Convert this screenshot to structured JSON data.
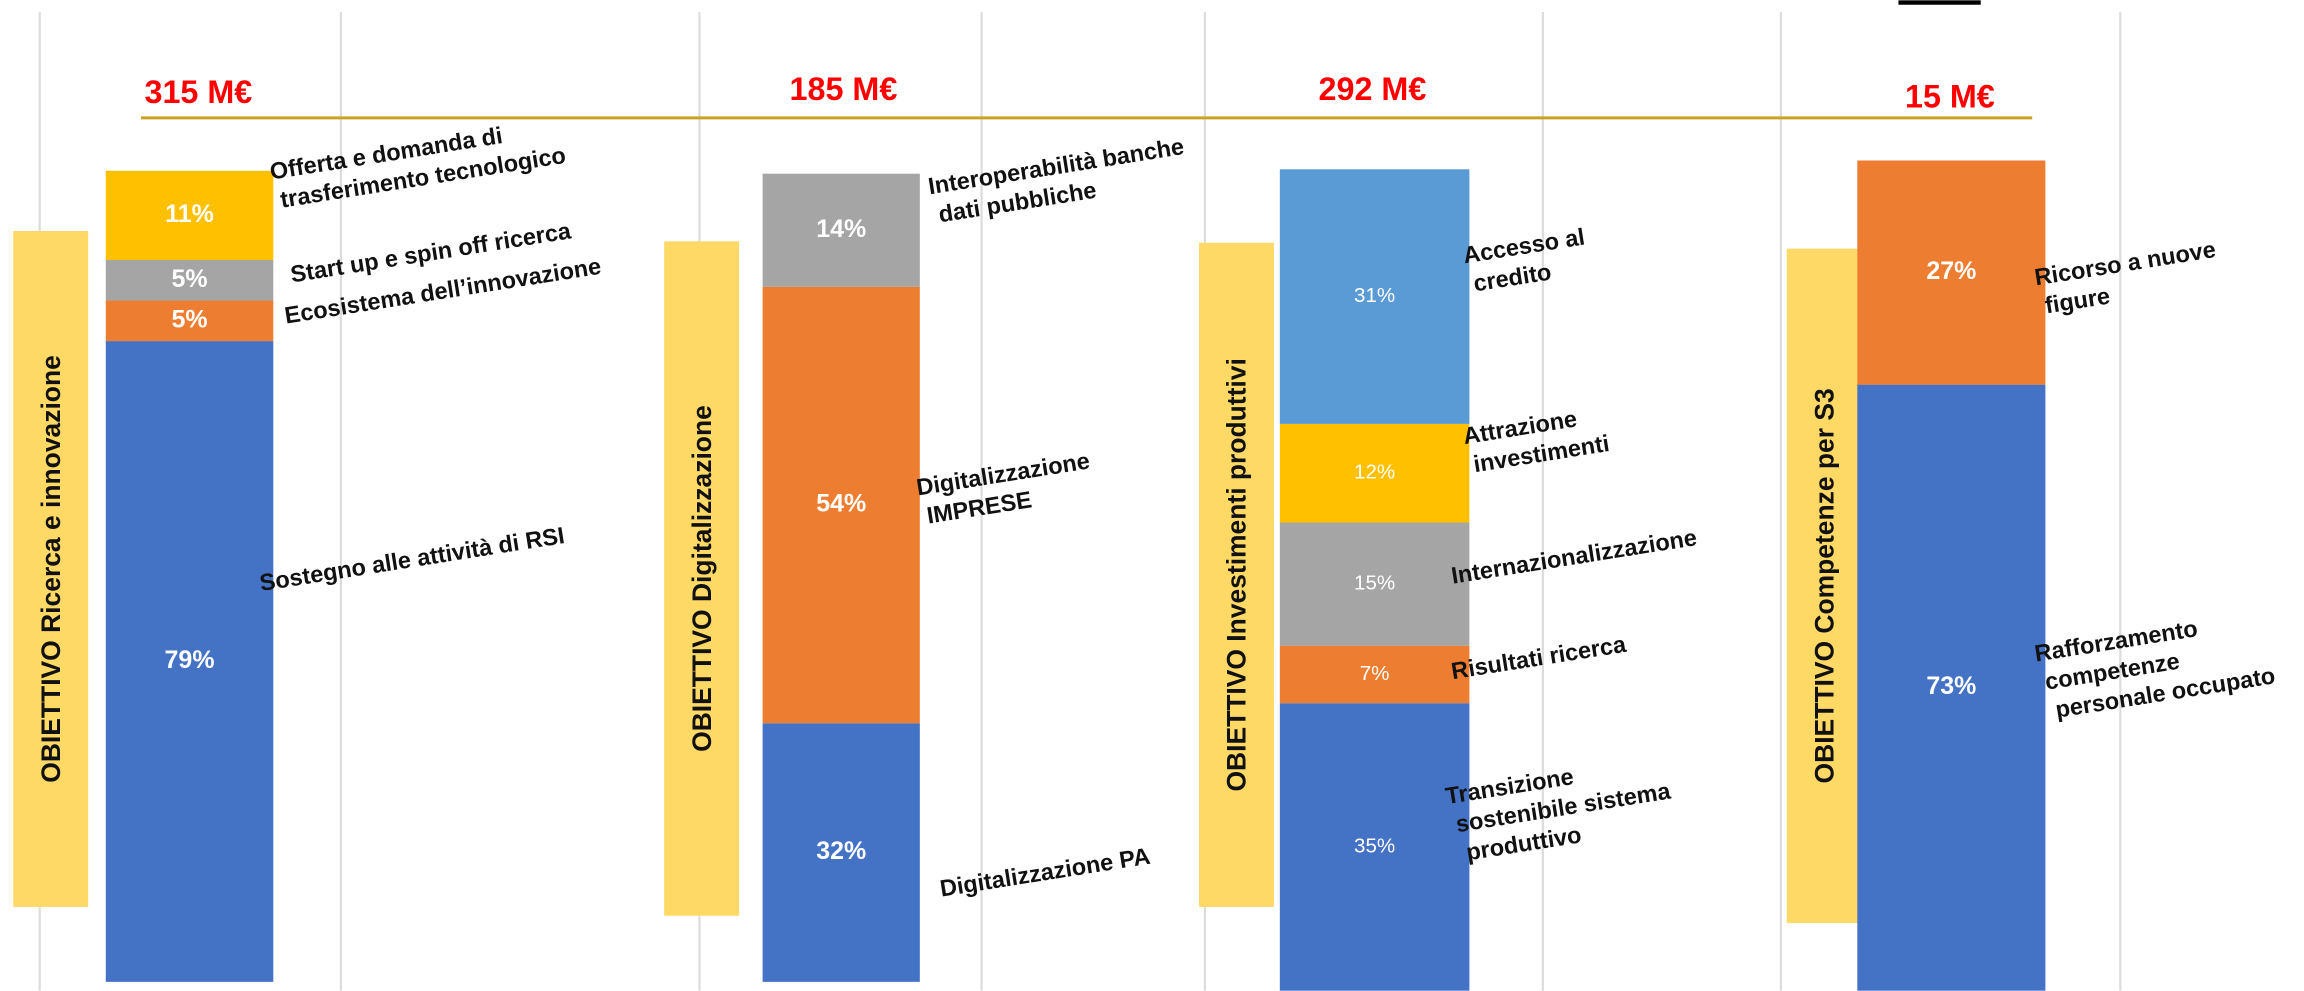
{
  "chart_data": [
    {
      "type": "bar",
      "stacked": true,
      "title": "315 M€",
      "objective": "OBIETTIVO Ricerca e innovazione",
      "segments": [
        {
          "label": [
            "Sostegno alle attività di RSI"
          ],
          "color": "#4472c4",
          "value": 79,
          "value_label": "79%"
        },
        {
          "label": [
            "Ecosistema dell’innovazione"
          ],
          "color": "#ed7d31",
          "value": 5,
          "value_label": "5%"
        },
        {
          "label": [
            "Start up e spin off ricerca"
          ],
          "color": "#a5a5a5",
          "value": 5,
          "value_label": "5%"
        },
        {
          "label": [
            "Offerta e domanda di",
            "trasferimento tecnologico"
          ],
          "color": "#ffc000",
          "value": 11,
          "value_label": "11%"
        }
      ]
    },
    {
      "type": "bar",
      "stacked": true,
      "title": "185 M€",
      "objective": "OBIETTIVO Digitalizzazione",
      "segments": [
        {
          "label": [
            "Digitalizzazione PA"
          ],
          "color": "#4472c4",
          "value": 32,
          "value_label": "32%"
        },
        {
          "label": [
            "Digitalizzazione",
            "IMPRESE"
          ],
          "color": "#ed7d31",
          "value": 54,
          "value_label": "54%"
        },
        {
          "label": [
            "Interoperabilità banche",
            "dati pubbliche"
          ],
          "color": "#a5a5a5",
          "value": 14,
          "value_label": "14%"
        }
      ]
    },
    {
      "type": "bar",
      "stacked": true,
      "title": "292 M€",
      "objective": "OBIETTIVO Investimenti produttivi",
      "segments": [
        {
          "label": [
            "Transizione",
            "sostenibile sistema",
            "produttivo"
          ],
          "color": "#4472c4",
          "value": 35,
          "value_label": "35%"
        },
        {
          "label": [
            "Risultati ricerca"
          ],
          "color": "#ed7d31",
          "value": 7,
          "value_label": "7%"
        },
        {
          "label": [
            "Internazionalizzazione"
          ],
          "color": "#a5a5a5",
          "value": 15,
          "value_label": "15%"
        },
        {
          "label": [
            "Attrazione",
            "investimenti"
          ],
          "color": "#ffc000",
          "value": 12,
          "value_label": "12%"
        },
        {
          "label": [
            "Accesso al",
            "credito"
          ],
          "color": "#5b9bd5",
          "value": 31,
          "value_label": "31%"
        }
      ]
    },
    {
      "type": "bar",
      "stacked": true,
      "title": "15 M€",
      "objective": "OBIETTIVO Competenze per S3",
      "segments": [
        {
          "label": [
            "Rafforzamento",
            "competenze",
            "personale occupato"
          ],
          "color": "#4472c4",
          "value": 73,
          "value_label": "73%"
        },
        {
          "label": [
            "Ricorso a nuove",
            "figure"
          ],
          "color": "#ed7d31",
          "value": 27,
          "value_label": "27%"
        }
      ]
    }
  ]
}
